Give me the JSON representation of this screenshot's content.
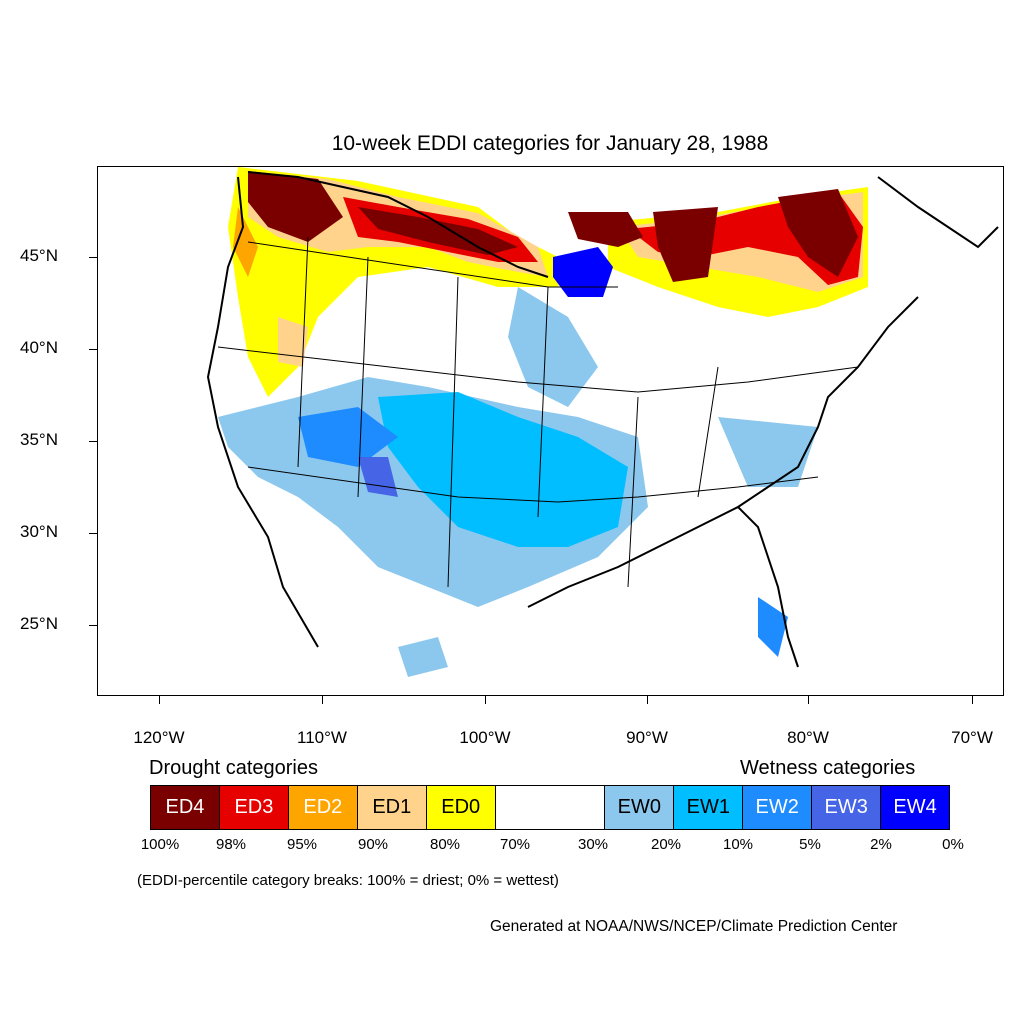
{
  "title": "10-week EDDI categories for January 28, 1988",
  "map": {
    "lat_ticks": [
      "45°N",
      "40°N",
      "35°N",
      "30°N",
      "25°N"
    ],
    "lon_ticks": [
      "120°W",
      "110°W",
      "100°W",
      "90°W",
      "80°W",
      "70°W"
    ],
    "colors": {
      "ED4": "#7a0000",
      "ED3": "#e60000",
      "ED2": "#ffa500",
      "ED1": "#ffd38c",
      "ED0": "#ffff00",
      "neutral": "#ffffff",
      "EW0": "#8cc8ee",
      "EW1": "#00beff",
      "EW2": "#1e8cff",
      "EW3": "#4664e6",
      "EW4": "#0000ff"
    }
  },
  "legend": {
    "drought_label": "Drought categories",
    "wetness_label": "Wetness categories",
    "categories": [
      {
        "label": "ED4",
        "color": "#7a0000",
        "text_color": "#ffffff"
      },
      {
        "label": "ED3",
        "color": "#e60000",
        "text_color": "#ffffff"
      },
      {
        "label": "ED2",
        "color": "#ffa500",
        "text_color": "#ffffff"
      },
      {
        "label": "ED1",
        "color": "#ffd38c",
        "text_color": "#000000"
      },
      {
        "label": "ED0",
        "color": "#ffff00",
        "text_color": "#000000"
      },
      {
        "label": "",
        "color": "#ffffff",
        "text_color": "#000000"
      },
      {
        "label": "EW0",
        "color": "#8cc8ee",
        "text_color": "#000000"
      },
      {
        "label": "EW1",
        "color": "#00beff",
        "text_color": "#000000"
      },
      {
        "label": "EW2",
        "color": "#1e8cff",
        "text_color": "#ffffff"
      },
      {
        "label": "EW3",
        "color": "#4664e6",
        "text_color": "#ffffff"
      },
      {
        "label": "EW4",
        "color": "#0000ff",
        "text_color": "#ffffff"
      }
    ],
    "breaks": [
      "100%",
      "98%",
      "95%",
      "90%",
      "80%",
      "70%",
      "30%",
      "20%",
      "10%",
      "5%",
      "2%",
      "0%"
    ]
  },
  "footnote": "(EDDI-percentile category breaks: 100% = driest; 0% = wettest)",
  "credit": "Generated at NOAA/NWS/NCEP/Climate Prediction Center"
}
